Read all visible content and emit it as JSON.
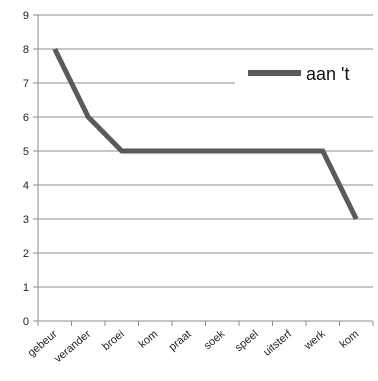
{
  "chart_data": {
    "type": "line",
    "categories": [
      "gebeur",
      "verander",
      "broei",
      "kom",
      "praat",
      "soek",
      "speel",
      "uitsterf",
      "werk",
      "kom"
    ],
    "series": [
      {
        "name": "aan 't",
        "values": [
          8,
          6,
          5,
          5,
          5,
          5,
          5,
          5,
          5,
          3
        ]
      }
    ],
    "ylim": [
      0,
      9
    ],
    "yticks": [
      "0",
      "1",
      "2",
      "3",
      "4",
      "5",
      "6",
      "7",
      "8",
      "9"
    ],
    "grid": "horizontal",
    "legend": "right",
    "line_color": "#5a5a5a",
    "grid_color": "#8c8c8c"
  }
}
